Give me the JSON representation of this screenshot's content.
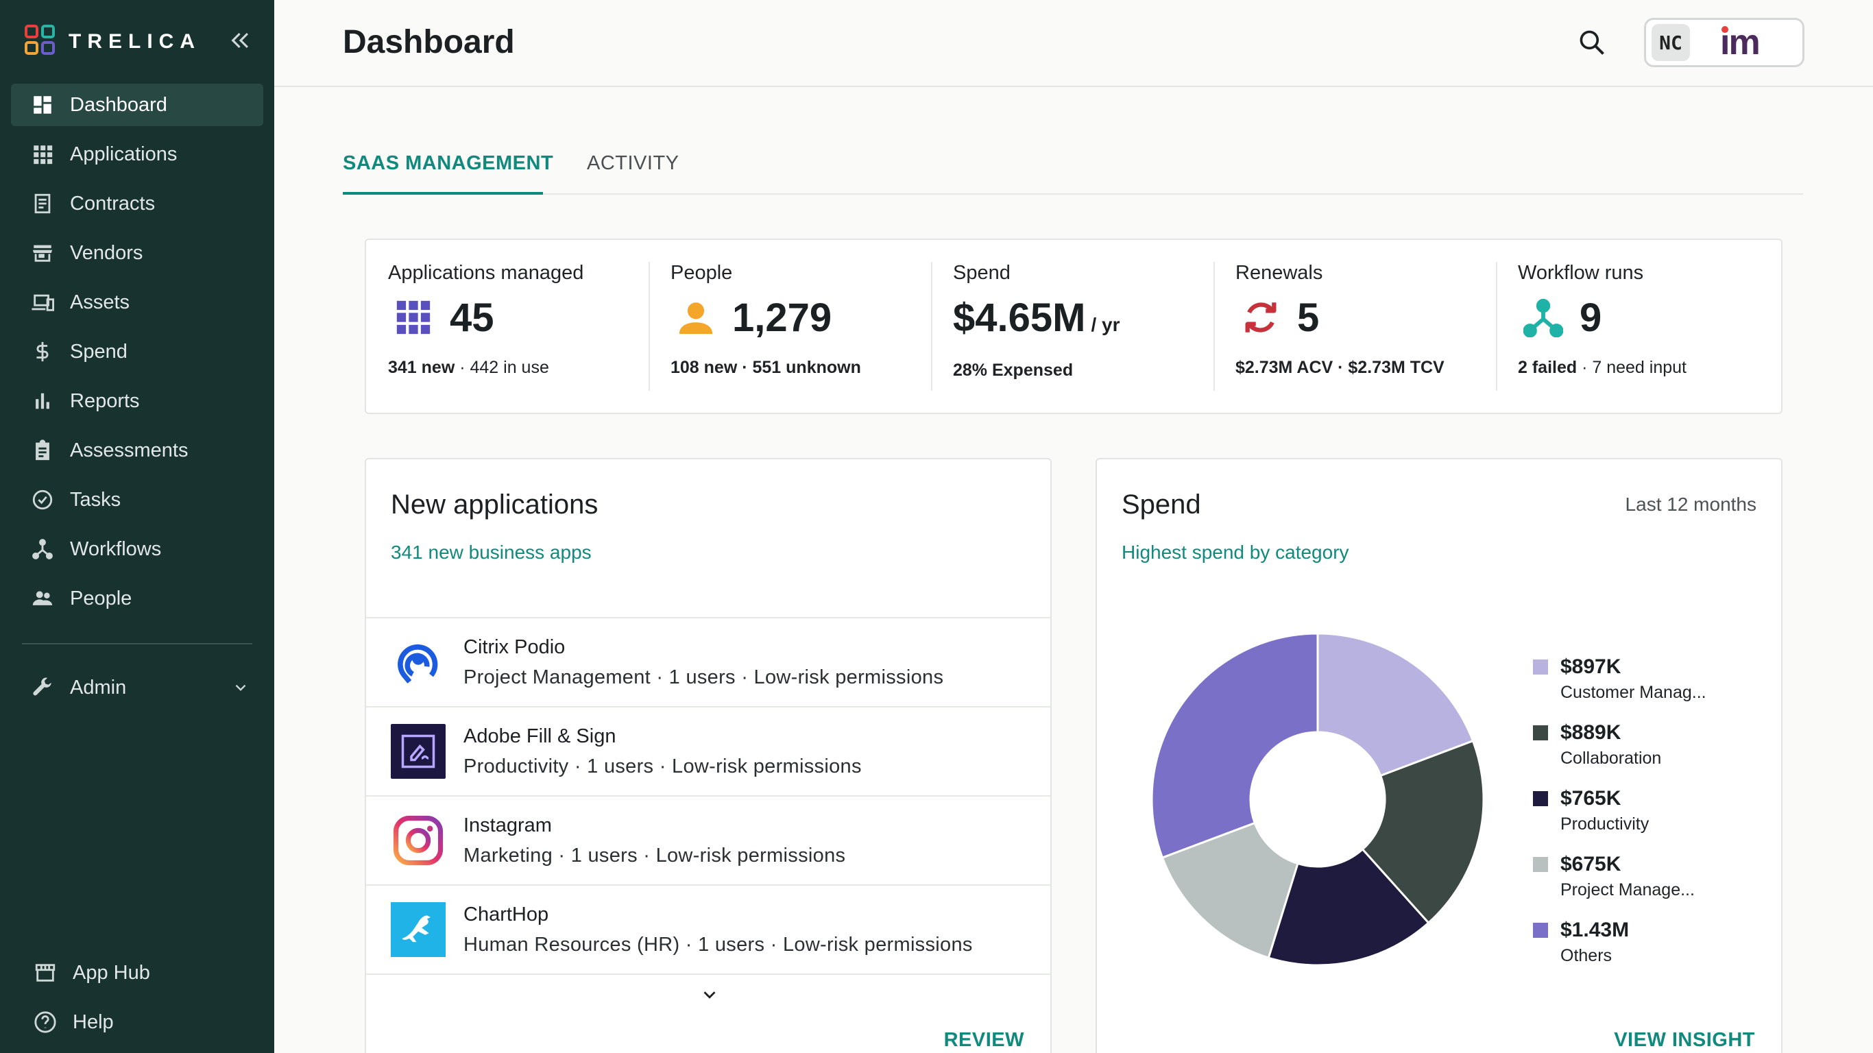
{
  "brand": {
    "name": "TRELICA",
    "accent": "#0f8a7d",
    "sidebar_bg": "#17322f"
  },
  "sidebar": {
    "items": [
      {
        "label": "Dashboard",
        "icon": "dashboard-icon",
        "active": true
      },
      {
        "label": "Applications",
        "icon": "apps-grid-icon"
      },
      {
        "label": "Contracts",
        "icon": "contract-icon"
      },
      {
        "label": "Vendors",
        "icon": "store-icon"
      },
      {
        "label": "Assets",
        "icon": "devices-icon"
      },
      {
        "label": "Spend",
        "icon": "dollar-icon"
      },
      {
        "label": "Reports",
        "icon": "bar-chart-icon"
      },
      {
        "label": "Assessments",
        "icon": "clipboard-icon"
      },
      {
        "label": "Tasks",
        "icon": "check-circle-icon"
      },
      {
        "label": "Workflows",
        "icon": "workflow-icon"
      },
      {
        "label": "People",
        "icon": "people-icon"
      }
    ],
    "admin": {
      "label": "Admin",
      "icon": "wrench-icon"
    },
    "bottom": [
      {
        "label": "App Hub",
        "icon": "store-front-icon"
      },
      {
        "label": "Help",
        "icon": "help-icon"
      }
    ]
  },
  "header": {
    "title": "Dashboard",
    "user_initials": "NC",
    "org_logo_text": "im"
  },
  "tabs": [
    {
      "label": "SAAS MANAGEMENT",
      "active": true
    },
    {
      "label": "ACTIVITY",
      "active": false
    }
  ],
  "stats": [
    {
      "label": "Applications managed",
      "value": "45",
      "sub_bold": "341 new",
      "sub_rest": " · 442 in use"
    },
    {
      "label": "People",
      "value": "1,279",
      "sub_bold": "108 new · 551 unknown",
      "sub_rest": ""
    },
    {
      "label": "Spend",
      "value": "$4.65M",
      "unit": "/ yr",
      "sub_bold": "28% Expensed",
      "sub_rest": ""
    },
    {
      "label": "Renewals",
      "value": "5",
      "sub_bold": "$2.73M ACV · $2.73M TCV",
      "sub_rest": ""
    },
    {
      "label": "Workflow runs",
      "value": "9",
      "sub_bold": "2 failed",
      "sub_rest": " · 7 need input"
    }
  ],
  "new_apps": {
    "title": "New applications",
    "link": "341 new business apps",
    "rows": [
      {
        "name": "Citrix Podio",
        "desc": "Project Management · 1 users · Low-risk permissions",
        "icon": "podio-logo-icon"
      },
      {
        "name": "Adobe Fill & Sign",
        "desc": "Productivity · 1 users · Low-risk permissions",
        "icon": "adobe-fill-sign-logo-icon"
      },
      {
        "name": "Instagram",
        "desc": "Marketing · 1 users · Low-risk permissions",
        "icon": "instagram-logo-icon"
      },
      {
        "name": "ChartHop",
        "desc": "Human Resources (HR) · 1 users · Low-risk permissions",
        "icon": "charthop-logo-icon"
      }
    ],
    "action": "REVIEW"
  },
  "spend_card": {
    "title": "Spend",
    "period": "Last 12 months",
    "link": "Highest spend by category",
    "action": "VIEW INSIGHT"
  },
  "chart_data": {
    "type": "pie",
    "categories": [
      "Customer Manag...",
      "Collaboration",
      "Productivity",
      "Project Manage...",
      "Others"
    ],
    "values": [
      0.897,
      0.889,
      0.765,
      0.675,
      1.43
    ],
    "value_labels": [
      "$897K",
      "$889K",
      "$765K",
      "$675K",
      "$1.43M"
    ],
    "unit": "$M",
    "colors": [
      "#b8b2e0",
      "#3c4844",
      "#1f1b3f",
      "#b8c1bf",
      "#7b70c8"
    ],
    "donut": true,
    "legend": "right"
  }
}
